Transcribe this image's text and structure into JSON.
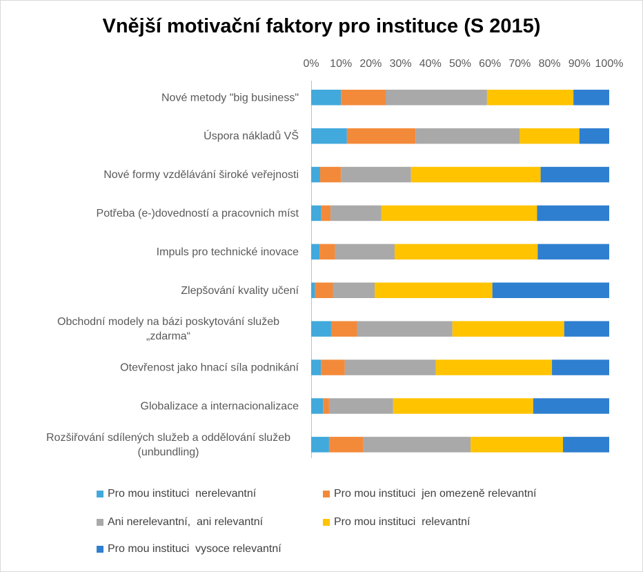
{
  "chart_data": {
    "type": "bar",
    "orientation": "horizontal",
    "stacked": "percent",
    "title": "Vnější motivační faktory pro instituce (S 2015)",
    "xlabel": "",
    "ylabel": "",
    "xlim": [
      0,
      100
    ],
    "x_ticks": [
      "0%",
      "10%",
      "20%",
      "30%",
      "40%",
      "50%",
      "60%",
      "70%",
      "80%",
      "90%",
      "100%"
    ],
    "categories": [
      "Nové metody \"big business\"",
      "Úspora nákladů VŠ",
      "Nové formy vzdělávání široké veřejnosti",
      "Potřeba (e-)dovedností a pracovnich míst",
      "Impuls pro technické inovace ",
      "Zlepšování kvality učení",
      "Obchodní modely na bázi poskytování služeb „zdarma“",
      "Otevřenost jako hnací síla podnikání",
      "Globalizace a internacionalizace",
      "Rozšiřování sdílených služeb a oddělování služeb (unbundling)"
    ],
    "series": [
      {
        "name": "Pro mou instituci  nerelevantní",
        "color": "#41a9dc",
        "values": [
          10,
          12,
          3,
          3.4,
          2.8,
          1.3,
          6.7,
          3.3,
          4,
          6
        ]
      },
      {
        "name": "Pro mou instituci  jen omezeně relevantní",
        "color": "#f38a3a",
        "values": [
          15,
          23,
          7,
          3.1,
          5.2,
          6,
          8.7,
          8,
          2,
          11.5
        ]
      },
      {
        "name": "Ani nerelevantní,  ani relevantní",
        "color": "#a9a9a9",
        "values": [
          34,
          35,
          23.5,
          17,
          20,
          14,
          32,
          30.5,
          21.5,
          36
        ]
      },
      {
        "name": "Pro mou instituci  relevantní",
        "color": "#ffc300",
        "values": [
          29,
          20,
          43.5,
          52.3,
          48,
          39.5,
          37.5,
          39,
          47,
          31
        ]
      },
      {
        "name": "Pro mou instituci  vysoce relevantní",
        "color": "#2f7fd0",
        "values": [
          12,
          10,
          23,
          24.2,
          24,
          39.2,
          15.1,
          19.2,
          25.5,
          15.5
        ]
      }
    ],
    "legend_position": "bottom",
    "grid": false
  }
}
